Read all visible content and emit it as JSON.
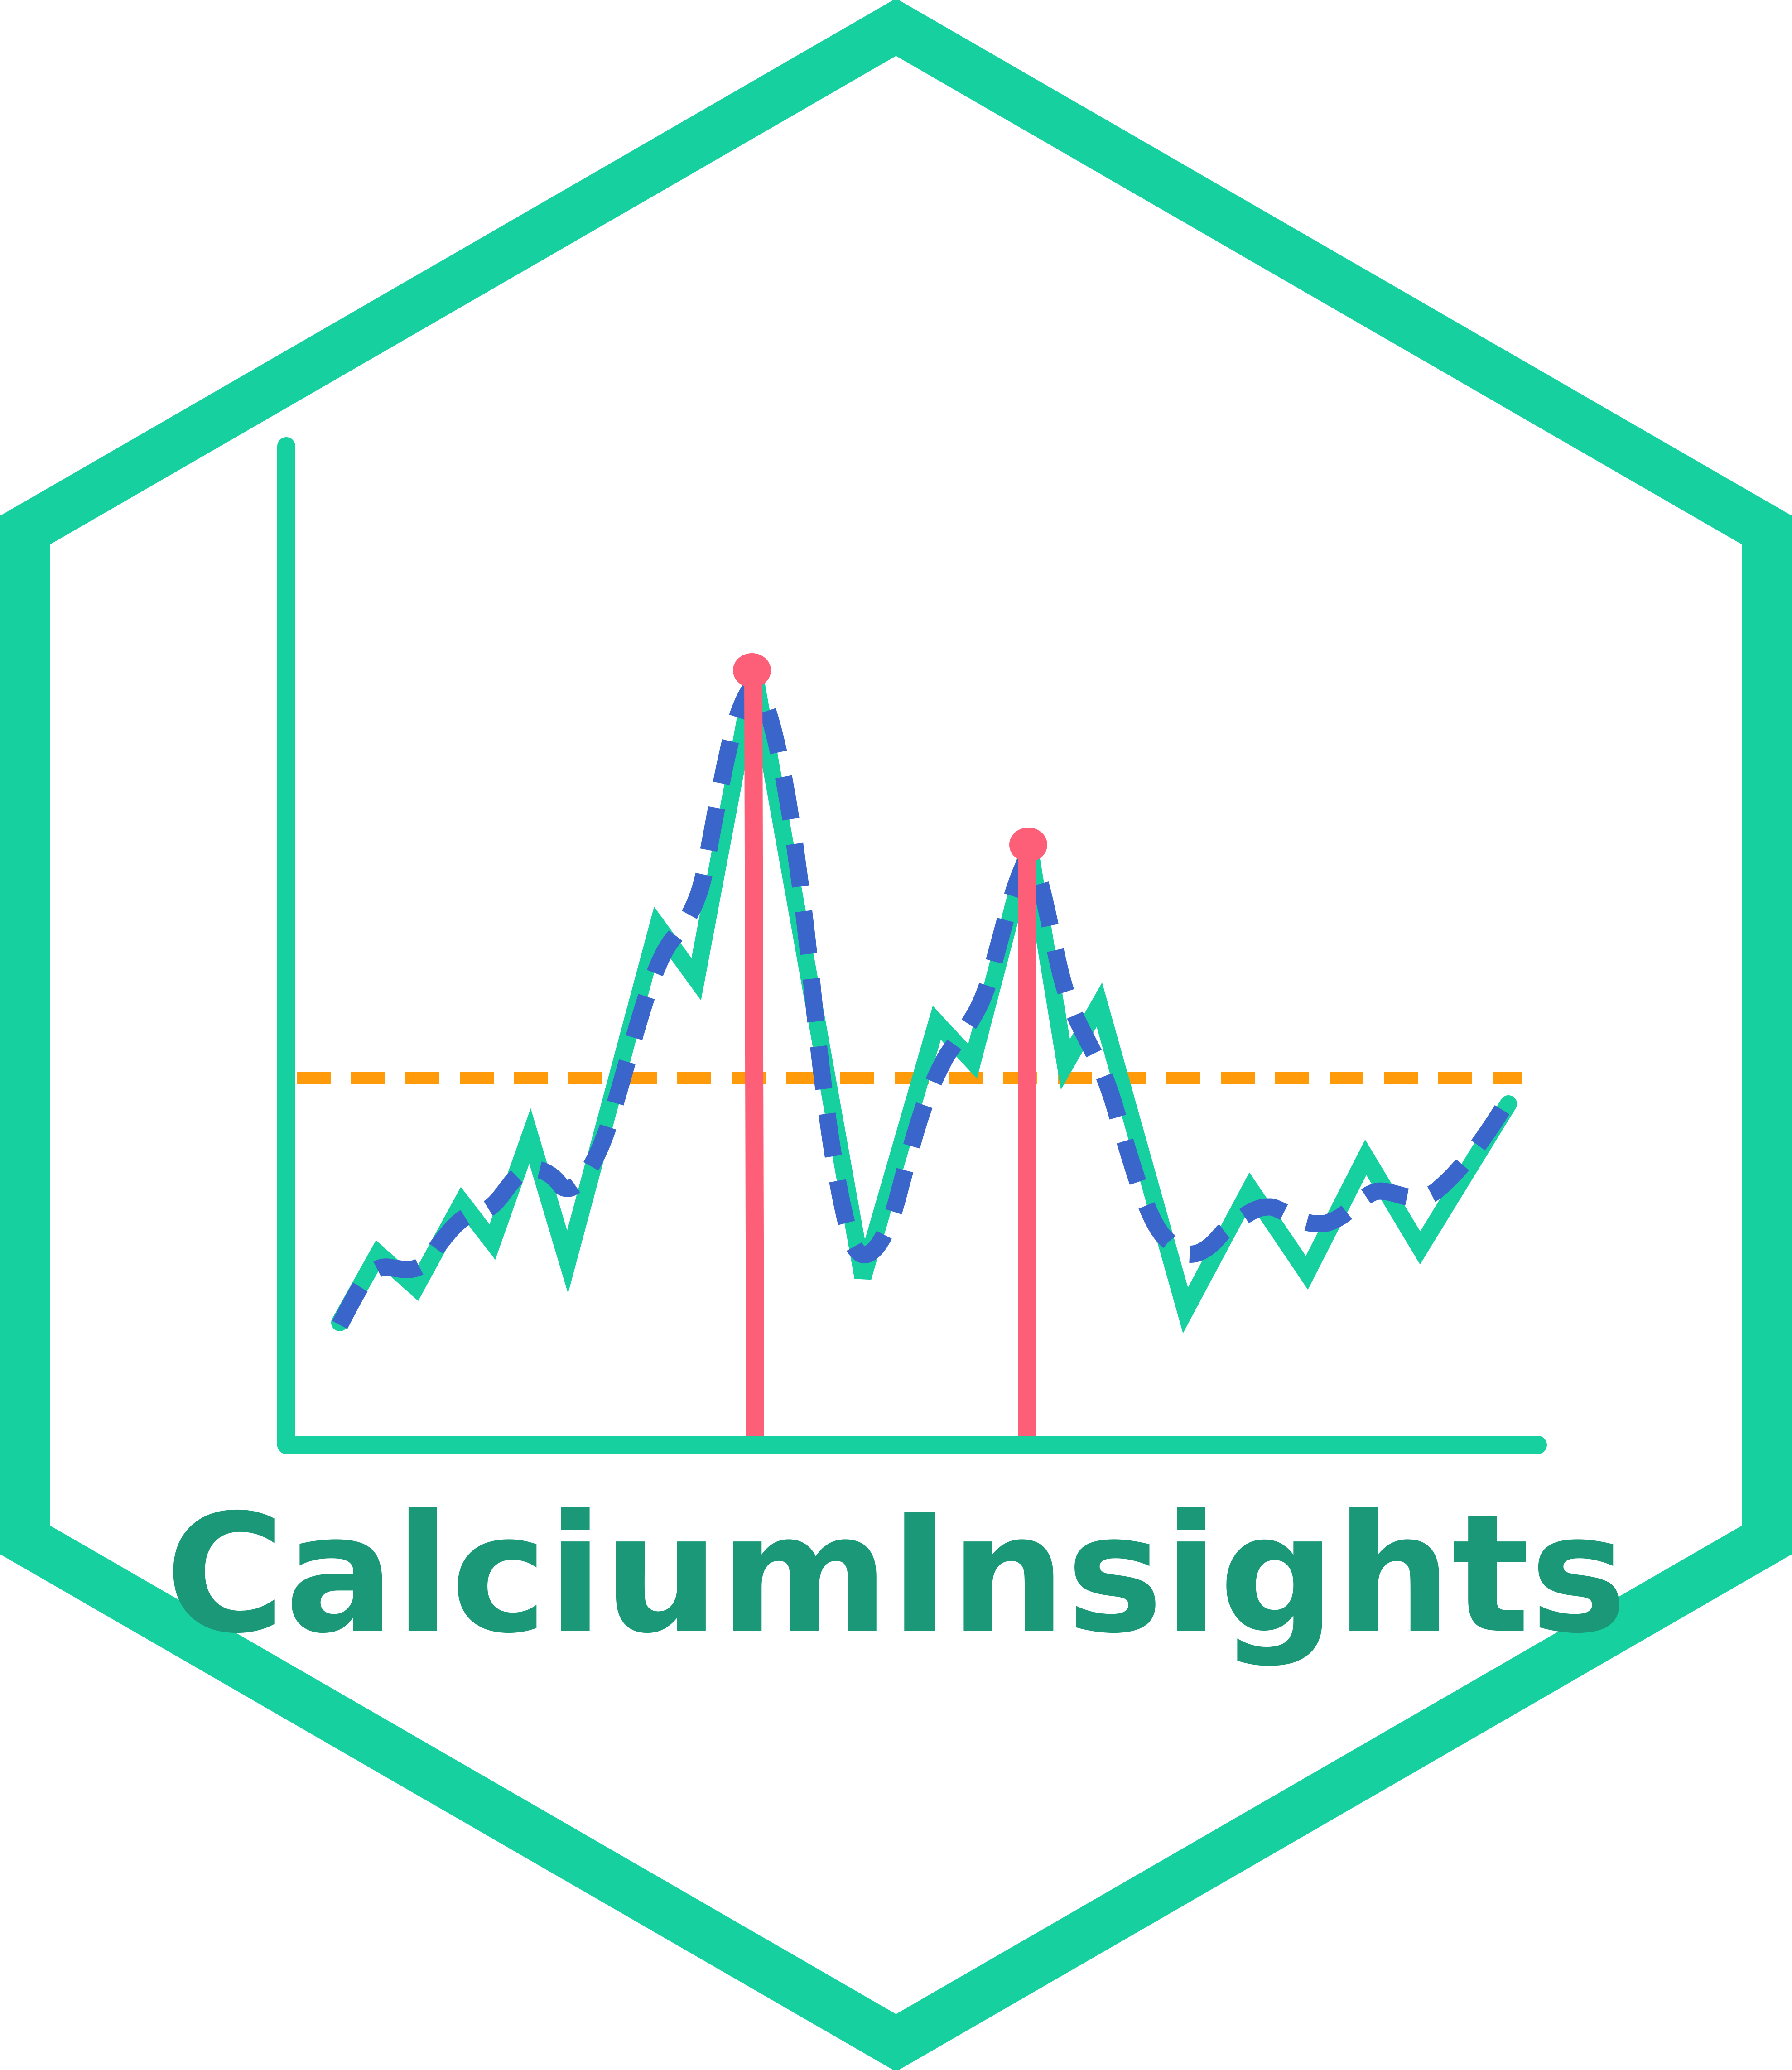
{
  "logo": {
    "name": "CalciumInsights",
    "text_color": "#1a9878",
    "hex_border_color": "#17d09f",
    "background_color": "#ffffff"
  },
  "graphic": {
    "trace_color": "#17d09f",
    "smoothed_trace_color": "#3a66cc",
    "threshold_color": "#ff9a0b",
    "peak_marker_color": "#fd5e78",
    "axis_color": "#17d09f",
    "peak_count": 2
  }
}
